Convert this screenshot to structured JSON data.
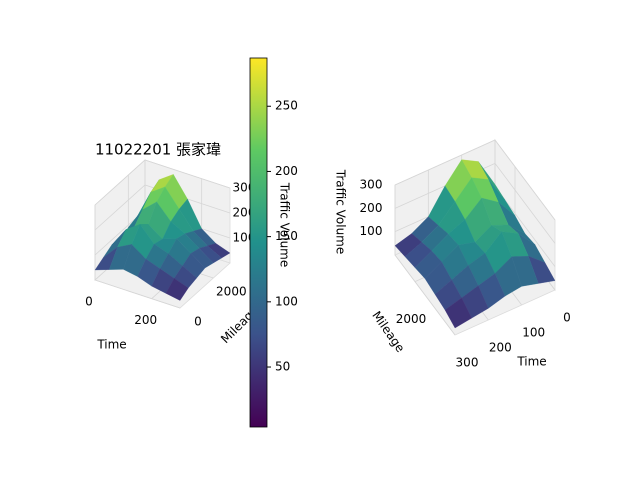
{
  "chart_data": {
    "type": "surface3d",
    "title": "11022201 張家瑋",
    "colormap": "viridis",
    "x": [
      0,
      50,
      100,
      150,
      200,
      250,
      300
    ],
    "y": [
      0,
      500,
      1000,
      1500,
      2000,
      2500,
      3000
    ],
    "z": [
      [
        40,
        60,
        80,
        70,
        50,
        40,
        30
      ],
      [
        60,
        120,
        150,
        110,
        90,
        70,
        50
      ],
      [
        80,
        160,
        200,
        140,
        120,
        90,
        60
      ],
      [
        70,
        140,
        170,
        130,
        150,
        110,
        70
      ],
      [
        90,
        180,
        230,
        170,
        140,
        100,
        60
      ],
      [
        100,
        220,
        260,
        190,
        120,
        80,
        50
      ],
      [
        110,
        240,
        280,
        200,
        100,
        60,
        40
      ]
    ],
    "colorbar": {
      "label": "Traffic Volume",
      "lim": [
        4,
        287
      ],
      "ticks": [
        50,
        100,
        150,
        200,
        250
      ]
    },
    "axes": [
      {
        "xlabel": "Time",
        "ylabel": "Mileage",
        "xlim": [
          0,
          300
        ],
        "ylim": [
          0,
          3000
        ],
        "zlim": [
          0,
          300
        ],
        "xticks": [
          0,
          200
        ],
        "yticks": [
          0,
          2000
        ],
        "zticks": [
          100,
          200,
          300
        ]
      },
      {
        "xlabel": "Time",
        "ylabel": "Mileage",
        "zlabel": "Traffic Volume",
        "xlim": [
          0,
          300
        ],
        "ylim": [
          0,
          3000
        ],
        "zlim": [
          0,
          300
        ],
        "xticks": [
          0,
          100,
          200,
          300
        ],
        "yticks": [
          2000
        ],
        "zticks": [
          100,
          200,
          300
        ]
      }
    ]
  }
}
